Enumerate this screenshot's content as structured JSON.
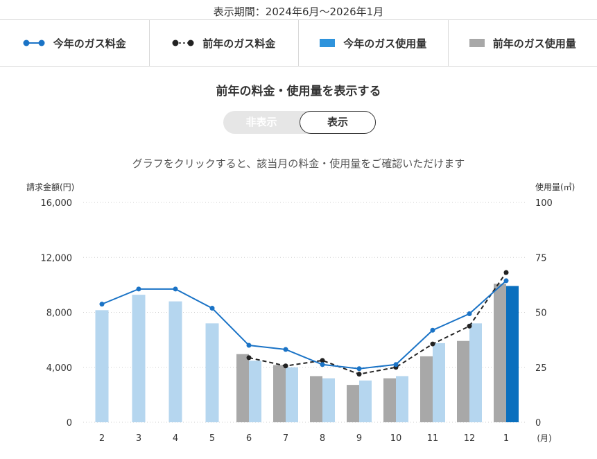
{
  "period_text": "表示期間：2024年6月〜2026年1月",
  "legend": {
    "this_year_cost": "今年のガス料金",
    "last_year_cost": "前年のガス料金",
    "this_year_usage": "今年のガス使用量",
    "last_year_usage": "前年のガス使用量"
  },
  "colors": {
    "this_year_cost": "#1a73c6",
    "last_year_cost": "#222222",
    "this_year_usage": "#b5d6ef",
    "this_year_usage_current": "#0a6fbe",
    "last_year_usage": "#a8a8a8",
    "legend_this_year_usage": "#2e93dc"
  },
  "prev_year_section": {
    "title": "前年の料金・使用量を表示する",
    "toggle_off": "非表示",
    "toggle_on": "表示"
  },
  "hint": "グラフをクリックすると、該当月の料金・使用量をご確認いただけます",
  "chart_data": {
    "type": "bar",
    "categories": [
      "2",
      "3",
      "4",
      "5",
      "6",
      "7",
      "8",
      "9",
      "10",
      "11",
      "12",
      "1"
    ],
    "x_unit": "(月)",
    "y_left": {
      "label": "請求金額(円)",
      "ticks": [
        "0",
        "4,000",
        "8,000",
        "12,000",
        "16,000"
      ],
      "range": [
        0,
        16000
      ]
    },
    "y_right": {
      "label": "使用量(㎥)",
      "ticks": [
        "0",
        "25",
        "50",
        "75",
        "100"
      ],
      "range": [
        0,
        100
      ]
    },
    "grid": true,
    "series": [
      {
        "name": "今年のガス料金",
        "kind": "line",
        "axis": "left",
        "values": [
          8600,
          9700,
          9700,
          8300,
          5600,
          5300,
          4200,
          3900,
          4200,
          6700,
          7900,
          10300
        ]
      },
      {
        "name": "前年のガス料金",
        "kind": "line-dashed",
        "axis": "left",
        "values": [
          null,
          null,
          null,
          null,
          4700,
          4100,
          4500,
          3500,
          4000,
          5700,
          7000,
          10900
        ]
      },
      {
        "name": "今年のガス使用量",
        "kind": "bar",
        "axis": "right",
        "values": [
          51,
          58,
          55,
          45,
          28,
          25,
          20,
          19,
          21,
          36,
          45,
          62
        ]
      },
      {
        "name": "前年のガス使用量",
        "kind": "bar",
        "axis": "right",
        "values": [
          null,
          null,
          null,
          null,
          31,
          26,
          21,
          17,
          20,
          30,
          37,
          63
        ]
      }
    ]
  }
}
